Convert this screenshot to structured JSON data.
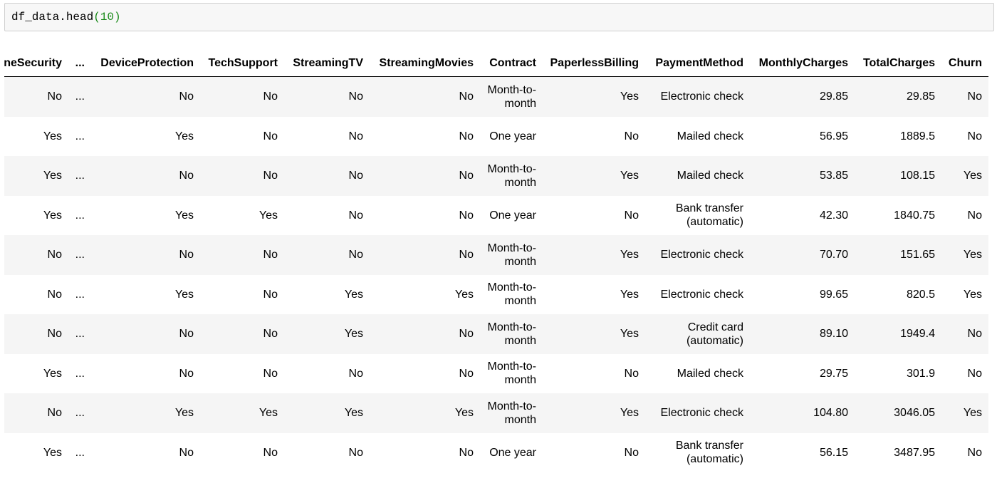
{
  "code": {
    "call": "df_data.head",
    "args": "(10)"
  },
  "table": {
    "columns": [
      "neSecurity",
      "...",
      "DeviceProtection",
      "TechSupport",
      "StreamingTV",
      "StreamingMovies",
      "Contract",
      "PaperlessBilling",
      "PaymentMethod",
      "MonthlyCharges",
      "TotalCharges",
      "Churn"
    ],
    "rows": [
      [
        "No",
        "...",
        "No",
        "No",
        "No",
        "No",
        "Month-to-month",
        "Yes",
        "Electronic check",
        "29.85",
        "29.85",
        "No"
      ],
      [
        "Yes",
        "...",
        "Yes",
        "No",
        "No",
        "No",
        "One year",
        "No",
        "Mailed check",
        "56.95",
        "1889.5",
        "No"
      ],
      [
        "Yes",
        "...",
        "No",
        "No",
        "No",
        "No",
        "Month-to-month",
        "Yes",
        "Mailed check",
        "53.85",
        "108.15",
        "Yes"
      ],
      [
        "Yes",
        "...",
        "Yes",
        "Yes",
        "No",
        "No",
        "One year",
        "No",
        "Bank transfer (automatic)",
        "42.30",
        "1840.75",
        "No"
      ],
      [
        "No",
        "...",
        "No",
        "No",
        "No",
        "No",
        "Month-to-month",
        "Yes",
        "Electronic check",
        "70.70",
        "151.65",
        "Yes"
      ],
      [
        "No",
        "...",
        "Yes",
        "No",
        "Yes",
        "Yes",
        "Month-to-month",
        "Yes",
        "Electronic check",
        "99.65",
        "820.5",
        "Yes"
      ],
      [
        "No",
        "...",
        "No",
        "No",
        "Yes",
        "No",
        "Month-to-month",
        "Yes",
        "Credit card (automatic)",
        "89.10",
        "1949.4",
        "No"
      ],
      [
        "Yes",
        "...",
        "No",
        "No",
        "No",
        "No",
        "Month-to-month",
        "No",
        "Mailed check",
        "29.75",
        "301.9",
        "No"
      ],
      [
        "No",
        "...",
        "Yes",
        "Yes",
        "Yes",
        "Yes",
        "Month-to-month",
        "Yes",
        "Electronic check",
        "104.80",
        "3046.05",
        "Yes"
      ],
      [
        "Yes",
        "...",
        "No",
        "No",
        "No",
        "No",
        "One year",
        "No",
        "Bank transfer (automatic)",
        "56.15",
        "3487.95",
        "No"
      ]
    ]
  }
}
